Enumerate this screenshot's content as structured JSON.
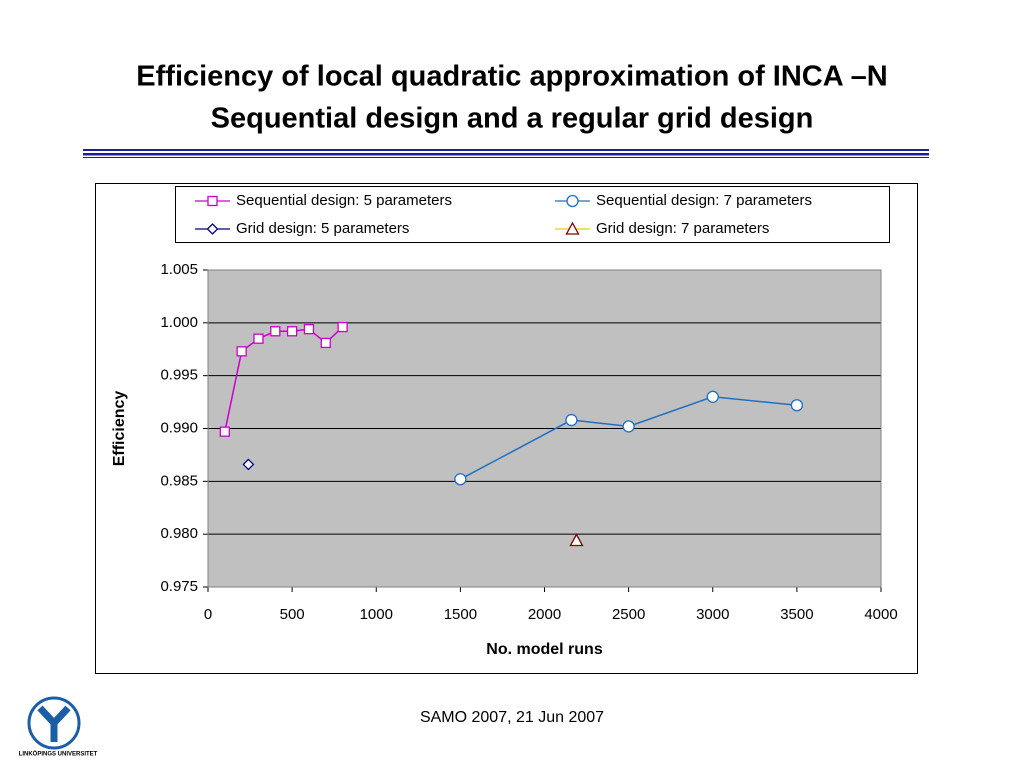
{
  "title": [
    "Efficiency of local quadratic approximation of INCA –N",
    "Sequential design and a regular grid design"
  ],
  "footer": "SAMO 2007, 21 Jun 2007",
  "logo_text": "LINKÖPINGS UNIVERSITET",
  "chart_data": {
    "type": "line",
    "xlabel": "No. model runs",
    "ylabel": "Efficiency",
    "xlim": [
      0,
      4000
    ],
    "xticks": [
      0,
      500,
      1000,
      1500,
      2000,
      2500,
      3000,
      3500,
      4000
    ],
    "ylim": [
      0.975,
      1.005
    ],
    "yticks": [
      0.975,
      {
        "value": 0.98,
        "label": "0.980"
      },
      0.985,
      {
        "value": 0.99,
        "label": "0.990"
      },
      0.995,
      {
        "value": 1.0,
        "label": "1.000"
      },
      1.005
    ],
    "grid": true,
    "plot_background": "#c0c0c0",
    "series": [
      {
        "name": "Sequential design: 5 parameters",
        "color": "#cc00cc",
        "marker": "square",
        "line": true,
        "x": [
          100,
          200,
          300,
          400,
          500,
          600,
          700,
          800
        ],
        "values": [
          0.9897,
          0.9973,
          0.9985,
          0.9992,
          0.9992,
          0.9994,
          0.9981,
          0.9996
        ]
      },
      {
        "name": "Sequential design: 7 parameters",
        "color": "#1f6fc5",
        "marker": "circle",
        "line": true,
        "x": [
          1500,
          2160,
          2500,
          3000,
          3500
        ],
        "values": [
          0.9852,
          0.9908,
          0.9902,
          0.993,
          0.9922
        ]
      },
      {
        "name": "Grid design: 5 parameters",
        "color": "#000080",
        "marker": "diamond",
        "line": false,
        "x": [
          240
        ],
        "values": [
          0.9866
        ]
      },
      {
        "name": "Grid design: 7 parameters",
        "color": "#800000",
        "line_color": "#e8d000",
        "marker": "triangle",
        "line": false,
        "x": [
          2190
        ],
        "values": [
          0.9794
        ]
      }
    ]
  }
}
